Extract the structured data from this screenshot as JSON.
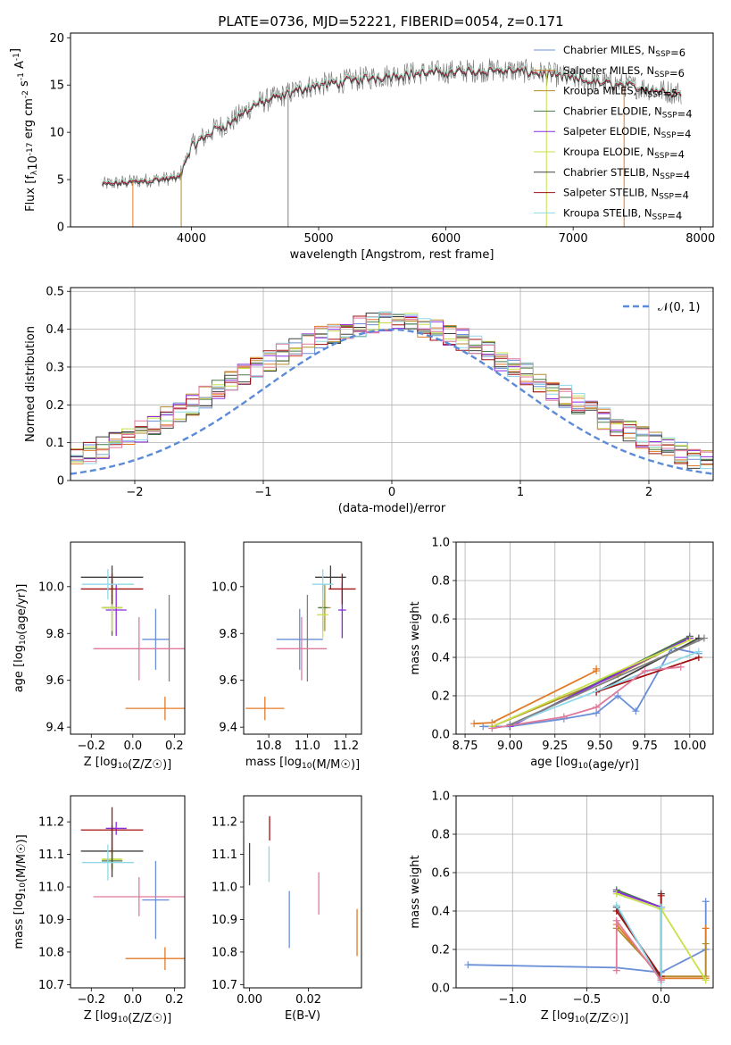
{
  "title": "PLATE=0736, MJD=52221, FIBERID=0054, z=0.171",
  "colors": {
    "Chabrier MILES": "#6a8fd8",
    "Salpeter MILES": "#e07b2a",
    "Kroupa MILES": "#b38b2e",
    "Chabrier ELODIE": "#4a7a4a",
    "Salpeter ELODIE": "#8a2be2",
    "Kroupa ELODIE": "#c8e04a",
    "Chabrier STELIB": "#404040",
    "Salpeter STELIB": "#a01010",
    "Kroupa STELIB": "#8fd8e8",
    "gray": "#808080",
    "pink": "#e07a9a",
    "normal": "#5b8bd8"
  },
  "chart_data": [
    {
      "type": "line",
      "xlabel": "wavelength [Angstrom, rest frame]",
      "ylabel": "Flux [f_λ10^{-17} erg cm^{-2} s^{-1} A^{-1}]",
      "xlim": [
        3050,
        8100
      ],
      "ylim": [
        0,
        20.5
      ],
      "xticks": [
        4000,
        5000,
        6000,
        7000,
        8000
      ],
      "yticks": [
        0,
        5,
        10,
        15,
        20
      ],
      "legend_position": "right",
      "spectrum_knots": [
        [
          3300,
          4.5
        ],
        [
          3700,
          5.0
        ],
        [
          3900,
          5.2
        ],
        [
          4000,
          8.5
        ],
        [
          4200,
          10.5
        ],
        [
          4300,
          11.0
        ],
        [
          4500,
          13.0
        ],
        [
          4700,
          13.8
        ],
        [
          4900,
          14.8
        ],
        [
          5000,
          15.0
        ],
        [
          5200,
          15.4
        ],
        [
          5400,
          15.8
        ],
        [
          5600,
          16.1
        ],
        [
          5800,
          16.3
        ],
        [
          6000,
          16.4
        ],
        [
          6200,
          16.5
        ],
        [
          6400,
          16.6
        ],
        [
          6600,
          16.5
        ],
        [
          6800,
          16.2
        ],
        [
          7000,
          15.7
        ],
        [
          7200,
          15.3
        ],
        [
          7400,
          15.0
        ],
        [
          7600,
          14.6
        ],
        [
          7800,
          14.2
        ]
      ],
      "series": [
        {
          "name": "Chabrier MILES",
          "nssp": "6"
        },
        {
          "name": "Salpeter MILES",
          "nssp": "6"
        },
        {
          "name": "Kroupa MILES",
          "nssp": "5"
        },
        {
          "name": "Chabrier ELODIE",
          "nssp": "4"
        },
        {
          "name": "Salpeter ELODIE",
          "nssp": "4"
        },
        {
          "name": "Kroupa ELODIE",
          "nssp": "4"
        },
        {
          "name": "Chabrier STELIB",
          "nssp": "4"
        },
        {
          "name": "Salpeter STELIB",
          "nssp": "4"
        },
        {
          "name": "Kroupa STELIB",
          "nssp": "4"
        }
      ]
    },
    {
      "type": "line",
      "xlabel": "(data-model)/error",
      "ylabel": "Normed distribution",
      "xlim": [
        -2.5,
        2.5
      ],
      "ylim": [
        0,
        0.51
      ],
      "xticks": [
        -2,
        -1,
        0,
        1,
        2
      ],
      "yticks": [
        0.0,
        0.1,
        0.2,
        0.3,
        0.4,
        0.5
      ],
      "grid": true,
      "legend": "𝒩(0, 1)",
      "legend_position": "top-right",
      "hist_bin_width": 0.1,
      "hist_base": [
        0.018,
        0.024,
        0.03,
        0.036,
        0.044,
        0.052,
        0.062,
        0.074,
        0.088,
        0.1,
        0.114,
        0.13,
        0.148,
        0.165,
        0.182,
        0.2,
        0.22,
        0.24,
        0.262,
        0.283,
        0.3,
        0.318,
        0.334,
        0.35,
        0.366,
        0.38,
        0.392,
        0.402,
        0.41,
        0.416,
        0.42,
        0.418,
        0.414,
        0.408,
        0.398,
        0.386,
        0.372,
        0.356,
        0.34,
        0.32,
        0.3,
        0.282,
        0.262,
        0.242,
        0.222,
        0.202,
        0.182,
        0.163,
        0.146,
        0.13,
        0.114,
        0.1,
        0.086,
        0.074,
        0.062,
        0.052,
        0.044,
        0.036,
        0.03,
        0.024,
        0.018,
        0.014,
        0.01
      ]
    },
    {
      "type": "scatter",
      "xlabel": "Z [log10(Z/Z☉)]",
      "ylabel": "age  [log10(age/yr)]",
      "xlim": [
        -0.3,
        0.25
      ],
      "ylim": [
        9.37,
        10.19
      ],
      "xticks": [
        "-0.2",
        "0.0",
        "0.2"
      ],
      "yticks": [
        "9.4",
        "9.6",
        "9.8",
        "10.0"
      ],
      "points": [
        {
          "s": "Chabrier MILES",
          "x": 0.11,
          "y": 9.775,
          "xerr": 0.13,
          "yerr": 0.26
        },
        {
          "s": "Salpeter MILES",
          "x": 0.155,
          "y": 9.48,
          "xerr": 0.38,
          "yerr": 0.1
        },
        {
          "s": "Kroupa MILES",
          "x": -0.1,
          "y": 9.91,
          "xerr": 0.08,
          "yerr": 0.23
        },
        {
          "s": "Chabrier ELODIE",
          "x": -0.1,
          "y": 9.91,
          "xerr": 0.1,
          "yerr": 0.24
        },
        {
          "s": "Salpeter ELODIE",
          "x": -0.08,
          "y": 9.9,
          "xerr": 0.1,
          "yerr": 0.22
        },
        {
          "s": "Kroupa ELODIE",
          "x": -0.1,
          "y": 9.91,
          "xerr": 0.1,
          "yerr": 0.2
        },
        {
          "s": "Chabrier STELIB",
          "x": -0.1,
          "y": 10.04,
          "xerr": 0.3,
          "yerr": 0.1
        },
        {
          "s": "Salpeter STELIB",
          "x": -0.1,
          "y": 9.99,
          "xerr": 0.3,
          "yerr": 0.13
        },
        {
          "s": "Kroupa STELIB",
          "x": -0.12,
          "y": 10.01,
          "xerr": 0.25,
          "yerr": 0.13
        },
        {
          "s": "gray",
          "x": 0.175,
          "y": 9.78,
          "xerr": 0.0,
          "yerr": 0.37
        },
        {
          "s": "pink",
          "x": 0.03,
          "y": 9.735,
          "xerr": 0.44,
          "yerr": 0.27
        }
      ]
    },
    {
      "type": "scatter",
      "xlabel": "mass [log10(M/M☉)]",
      "ylabel": "",
      "xlim": [
        10.67,
        11.28
      ],
      "ylim": [
        9.37,
        10.19
      ],
      "xticks": [
        "10.8",
        "11.0",
        "11.2"
      ],
      "yticks": [
        "9.4",
        "9.6",
        "9.8",
        "10.0"
      ],
      "points": [
        {
          "s": "Chabrier MILES",
          "x": 10.96,
          "y": 9.775,
          "xerr": 0.24,
          "yerr": 0.26
        },
        {
          "s": "Salpeter MILES",
          "x": 10.78,
          "y": 9.48,
          "xerr": 0.2,
          "yerr": 0.1
        },
        {
          "s": "Kroupa MILES",
          "x": 11.09,
          "y": 9.91,
          "xerr": 0.06,
          "yerr": 0.2
        },
        {
          "s": "Chabrier ELODIE",
          "x": 11.08,
          "y": 9.91,
          "xerr": 0.05,
          "yerr": 0.2
        },
        {
          "s": "Salpeter ELODIE",
          "x": 11.18,
          "y": 9.9,
          "xerr": 0.04,
          "yerr": 0.24
        },
        {
          "s": "Kroupa ELODIE",
          "x": 11.08,
          "y": 9.88,
          "xerr": 0.06,
          "yerr": 0.2
        },
        {
          "s": "Chabrier STELIB",
          "x": 11.12,
          "y": 10.04,
          "xerr": 0.16,
          "yerr": 0.1
        },
        {
          "s": "Salpeter STELIB",
          "x": 11.18,
          "y": 9.99,
          "xerr": 0.14,
          "yerr": 0.13
        },
        {
          "s": "Kroupa STELIB",
          "x": 11.08,
          "y": 10.01,
          "xerr": 0.11,
          "yerr": 0.13
        },
        {
          "s": "gray",
          "x": 11.0,
          "y": 9.78,
          "xerr": 0.0,
          "yerr": 0.37
        },
        {
          "s": "pink",
          "x": 10.97,
          "y": 9.735,
          "xerr": 0.26,
          "yerr": 0.27
        }
      ]
    },
    {
      "type": "line",
      "xlabel": "age  [log10(age/yr)]",
      "ylabel": "mass weight",
      "xlim": [
        8.7,
        10.13
      ],
      "ylim": [
        0,
        1.0
      ],
      "xticks": [
        "8.75",
        "9.00",
        "9.25",
        "9.50",
        "9.75",
        "10.00"
      ],
      "yticks": [
        "0.0",
        "0.2",
        "0.4",
        "0.6",
        "0.8",
        "1.0"
      ],
      "grid": true,
      "series": [
        {
          "s": "Chabrier MILES",
          "x": [
            8.85,
            9.0,
            9.3,
            9.48,
            9.6,
            9.7,
            9.9,
            10.05
          ],
          "y": [
            0.04,
            0.04,
            0.08,
            0.11,
            0.2,
            0.12,
            0.45,
            0.42
          ]
        },
        {
          "s": "Salpeter MILES",
          "x": [
            8.8,
            8.9,
            9.48,
            9.48
          ],
          "y": [
            0.055,
            0.06,
            0.33,
            0.34
          ]
        },
        {
          "s": "Kroupa MILES",
          "x": [
            8.9,
            9.6,
            10.0
          ],
          "y": [
            0.04,
            0.31,
            0.5
          ]
        },
        {
          "s": "Chabrier ELODIE",
          "x": [
            9.0,
            10.0
          ],
          "y": [
            0.04,
            0.51
          ]
        },
        {
          "s": "Salpeter ELODIE",
          "x": [
            9.0,
            10.0
          ],
          "y": [
            0.04,
            0.5
          ]
        },
        {
          "s": "Kroupa ELODIE",
          "x": [
            8.9,
            10.0
          ],
          "y": [
            0.04,
            0.49
          ]
        },
        {
          "s": "Chabrier STELIB",
          "x": [
            9.48,
            10.05
          ],
          "y": [
            0.22,
            0.5
          ]
        },
        {
          "s": "Salpeter STELIB",
          "x": [
            9.48,
            10.05
          ],
          "y": [
            0.22,
            0.4
          ]
        },
        {
          "s": "Kroupa STELIB",
          "x": [
            9.0,
            10.05
          ],
          "y": [
            0.05,
            0.43
          ]
        },
        {
          "s": "pink",
          "x": [
            8.9,
            9.3,
            9.48,
            9.75,
            9.95
          ],
          "y": [
            0.03,
            0.09,
            0.14,
            0.33,
            0.35
          ]
        },
        {
          "s": "gray",
          "x": [
            9.0,
            10.08
          ],
          "y": [
            0.05,
            0.5
          ]
        }
      ]
    },
    {
      "type": "scatter",
      "xlabel": "Z [log10(Z/Z☉)]",
      "ylabel": "mass [log10(M/M☉)]",
      "xlim": [
        -0.3,
        0.25
      ],
      "ylim": [
        10.69,
        11.28
      ],
      "xticks": [
        "-0.2",
        "0.0",
        "0.2"
      ],
      "yticks": [
        "10.7",
        "10.8",
        "10.9",
        "11.0",
        "11.1",
        "11.2"
      ],
      "points": [
        {
          "s": "Chabrier MILES",
          "x": 0.11,
          "y": 10.96,
          "xerr": 0.13,
          "yerr": 0.24
        },
        {
          "s": "Salpeter MILES",
          "x": 0.155,
          "y": 10.78,
          "xerr": 0.38,
          "yerr": 0.07
        },
        {
          "s": "Kroupa MILES",
          "x": -0.1,
          "y": 11.085,
          "xerr": 0.09,
          "yerr": 0.07
        },
        {
          "s": "Chabrier ELODIE",
          "x": -0.1,
          "y": 11.08,
          "xerr": 0.1,
          "yerr": 0.05
        },
        {
          "s": "Salpeter ELODIE",
          "x": -0.08,
          "y": 11.18,
          "xerr": 0.1,
          "yerr": 0.04
        },
        {
          "s": "Kroupa ELODIE",
          "x": -0.1,
          "y": 11.085,
          "xerr": 0.1,
          "yerr": 0.06
        },
        {
          "s": "Chabrier STELIB",
          "x": -0.1,
          "y": 11.11,
          "xerr": 0.3,
          "yerr": 0.16
        },
        {
          "s": "Salpeter STELIB",
          "x": -0.1,
          "y": 11.175,
          "xerr": 0.3,
          "yerr": 0.14
        },
        {
          "s": "Kroupa STELIB",
          "x": -0.12,
          "y": 11.075,
          "xerr": 0.25,
          "yerr": 0.11
        },
        {
          "s": "gray",
          "x": 0.175,
          "y": 10.96,
          "xerr": 0.0,
          "yerr": 0.0
        },
        {
          "s": "pink",
          "x": 0.03,
          "y": 10.97,
          "xerr": 0.44,
          "yerr": 0.12
        }
      ]
    },
    {
      "type": "scatter",
      "xlabel": "E(B-V)",
      "ylabel": "",
      "xlim": [
        -0.002,
        0.038
      ],
      "ylim": [
        10.69,
        11.28
      ],
      "xticks": [
        "0.00",
        "0.02"
      ],
      "yticks": [
        "10.7",
        "10.8",
        "10.9",
        "11.0",
        "11.1",
        "11.2"
      ],
      "points": [
        {
          "s": "Chabrier MILES",
          "x": 0.0135,
          "y": 10.9,
          "xerr": 0.0,
          "yerr": 0.175
        },
        {
          "s": "Salpeter MILES",
          "x": 0.0365,
          "y": 10.86,
          "xerr": 0.0,
          "yerr": 0.145
        },
        {
          "s": "Chabrier STELIB",
          "x": 0.0,
          "y": 11.07,
          "xerr": 0.0,
          "yerr": 0.13
        },
        {
          "s": "Salpeter STELIB",
          "x": 0.0068,
          "y": 11.18,
          "xerr": 0.0,
          "yerr": 0.075
        },
        {
          "s": "Kroupa STELIB",
          "x": 0.0066,
          "y": 11.07,
          "xerr": 0.0,
          "yerr": 0.11
        },
        {
          "s": "pink",
          "x": 0.0235,
          "y": 10.98,
          "xerr": 0.0,
          "yerr": 0.13
        }
      ]
    },
    {
      "type": "line",
      "xlabel": "Z [log10(Z/Z☉)]",
      "ylabel": "mass weight",
      "xlim": [
        -1.38,
        0.35
      ],
      "ylim": [
        0,
        1.0
      ],
      "xticks": [
        "-1.0",
        "-0.5",
        "0.0"
      ],
      "yticks": [
        "0.0",
        "0.2",
        "0.4",
        "0.6",
        "0.8",
        "1.0"
      ],
      "grid": true,
      "series": [
        {
          "s": "Chabrier MILES",
          "x": [
            -1.3,
            -0.3,
            0.0,
            0.3,
            0.3
          ],
          "y": [
            0.12,
            0.105,
            0.08,
            0.2,
            0.45
          ]
        },
        {
          "s": "Salpeter MILES",
          "x": [
            -0.3,
            0.0,
            0.3,
            0.3
          ],
          "y": [
            0.33,
            0.05,
            0.05,
            0.31
          ]
        },
        {
          "s": "Kroupa MILES",
          "x": [
            -0.3,
            0.0,
            0.3,
            0.3
          ],
          "y": [
            0.31,
            0.06,
            0.06,
            0.23
          ]
        },
        {
          "s": "Chabrier ELODIE",
          "x": [
            -0.3,
            0.0
          ],
          "y": [
            0.51,
            0.42
          ]
        },
        {
          "s": "Salpeter ELODIE",
          "x": [
            -0.3,
            0.0
          ],
          "y": [
            0.5,
            0.42
          ]
        },
        {
          "s": "Kroupa ELODIE",
          "x": [
            -0.3,
            0.0,
            0.3
          ],
          "y": [
            0.49,
            0.41,
            0.04
          ]
        },
        {
          "s": "Chabrier STELIB",
          "x": [
            -0.3,
            0.0,
            0.0
          ],
          "y": [
            0.42,
            0.04,
            0.49
          ]
        },
        {
          "s": "Salpeter STELIB",
          "x": [
            -0.3,
            0.0,
            0.0
          ],
          "y": [
            0.4,
            0.06,
            0.48
          ]
        },
        {
          "s": "Kroupa STELIB",
          "x": [
            -0.3,
            0.0,
            0.0
          ],
          "y": [
            0.43,
            0.03,
            0.42
          ]
        },
        {
          "s": "pink",
          "x": [
            -0.3,
            -0.3,
            0.0
          ],
          "y": [
            0.09,
            0.35,
            0.04
          ]
        }
      ]
    }
  ]
}
